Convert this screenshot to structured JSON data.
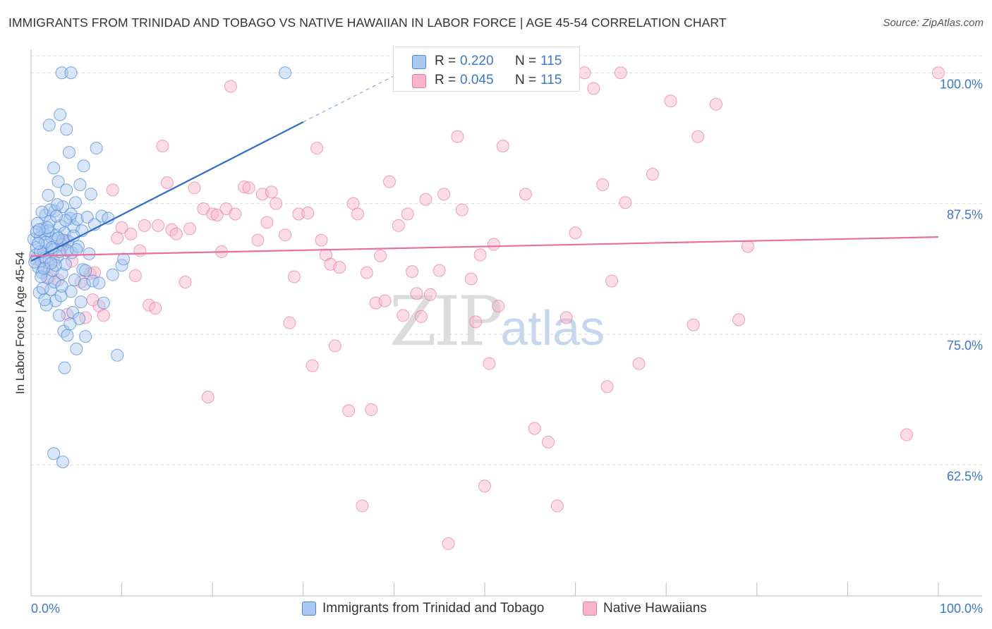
{
  "title": "IMMIGRANTS FROM TRINIDAD AND TOBAGO VS NATIVE HAWAIIAN IN LABOR FORCE | AGE 45-54 CORRELATION CHART",
  "source": "Source: ZipAtlas.com",
  "watermark": {
    "zip": "ZIP",
    "atlas": "atlas"
  },
  "legend_stats": [
    {
      "r_label": "R =",
      "r_value": "0.220",
      "n_label": "N =",
      "n_value": "115",
      "color": "#a8c8f0"
    },
    {
      "r_label": "R =",
      "r_value": "0.045",
      "n_label": "N =",
      "n_value": "115",
      "color": "#f8b4c8"
    }
  ],
  "chart_data": {
    "type": "scatter",
    "title": "IMMIGRANTS FROM TRINIDAD AND TOBAGO VS NATIVE HAWAIIAN IN LABOR FORCE | AGE 45-54 CORRELATION CHART",
    "xlabel": "",
    "ylabel": "In Labor Force | Age 45-54",
    "xlim": [
      0,
      100
    ],
    "ylim": [
      50,
      101.5
    ],
    "x_tick_labels": [
      "0.0%",
      "100.0%"
    ],
    "y_tick_labels": [
      "100.0%",
      "87.5%",
      "75.0%",
      "62.5%"
    ],
    "y_ticks": [
      100,
      87.5,
      75,
      62.5
    ],
    "grid": true,
    "series": [
      {
        "name": "Immigrants from Trinidad and Tobago",
        "color": "#a8c8f0",
        "stroke": "#4a86d4",
        "trend": {
          "x0": 0,
          "y0": 82.0,
          "x1": 30,
          "y1": 95.3,
          "dashed_to_x": 40,
          "dashed_to_y": 99.7,
          "color": "#2e6ccc"
        },
        "points": [
          [
            0.3,
            84.1
          ],
          [
            0.5,
            82.6
          ],
          [
            0.6,
            83.3
          ],
          [
            0.8,
            81.4
          ],
          [
            1.0,
            84.3
          ],
          [
            1.1,
            82.0
          ],
          [
            1.2,
            80.9
          ],
          [
            1.3,
            85.1
          ],
          [
            1.4,
            82.9
          ],
          [
            1.5,
            84.6
          ],
          [
            1.6,
            86.4
          ],
          [
            1.7,
            83.5
          ],
          [
            1.8,
            80.4
          ],
          [
            1.9,
            88.3
          ],
          [
            2.0,
            82.1
          ],
          [
            2.1,
            85.8
          ],
          [
            2.2,
            79.3
          ],
          [
            2.3,
            84.2
          ],
          [
            2.4,
            81.1
          ],
          [
            2.5,
            90.9
          ],
          [
            2.6,
            86.8
          ],
          [
            2.7,
            78.2
          ],
          [
            2.8,
            84.5
          ],
          [
            2.9,
            82.4
          ],
          [
            3.0,
            89.6
          ],
          [
            3.1,
            76.8
          ],
          [
            3.2,
            85.4
          ],
          [
            3.3,
            83.6
          ],
          [
            3.4,
            80.8
          ],
          [
            3.5,
            87.2
          ],
          [
            3.6,
            75.3
          ],
          [
            3.7,
            84.7
          ],
          [
            3.8,
            81.7
          ],
          [
            3.9,
            88.8
          ],
          [
            4.0,
            74.9
          ],
          [
            4.1,
            83.9
          ],
          [
            4.2,
            92.4
          ],
          [
            4.3,
            86.1
          ],
          [
            4.4,
            79.1
          ],
          [
            4.5,
            82.8
          ],
          [
            4.6,
            77.1
          ],
          [
            4.7,
            85.3
          ],
          [
            4.8,
            80.2
          ],
          [
            4.9,
            87.6
          ],
          [
            5.0,
            73.6
          ],
          [
            5.1,
            86.0
          ],
          [
            5.2,
            83.4
          ],
          [
            5.3,
            76.5
          ],
          [
            5.4,
            89.3
          ],
          [
            5.5,
            78.1
          ],
          [
            5.6,
            84.9
          ],
          [
            5.7,
            81.2
          ],
          [
            5.8,
            91.1
          ],
          [
            5.9,
            79.8
          ],
          [
            6.0,
            74.8
          ],
          [
            6.2,
            86.2
          ],
          [
            6.4,
            82.7
          ],
          [
            6.6,
            88.4
          ],
          [
            6.8,
            80.1
          ],
          [
            7.0,
            85.5
          ],
          [
            7.2,
            92.8
          ],
          [
            7.5,
            79.9
          ],
          [
            7.8,
            86.3
          ],
          [
            8.0,
            78.0
          ],
          [
            8.5,
            86.1
          ],
          [
            9.0,
            80.7
          ],
          [
            9.5,
            73.0
          ],
          [
            10.0,
            81.6
          ],
          [
            10.2,
            82.2
          ],
          [
            2.0,
            95.0
          ],
          [
            3.9,
            94.6
          ],
          [
            3.2,
            96.0
          ],
          [
            1.5,
            82.3
          ],
          [
            0.9,
            79.0
          ],
          [
            1.1,
            80.5
          ],
          [
            2.4,
            83.1
          ],
          [
            2.7,
            81.6
          ],
          [
            3.3,
            78.7
          ],
          [
            1.7,
            77.8
          ],
          [
            2.1,
            86.9
          ],
          [
            3.5,
            84.0
          ],
          [
            4.0,
            83.0
          ],
          [
            4.4,
            86.5
          ],
          [
            4.7,
            84.4
          ],
          [
            1.6,
            83.8
          ],
          [
            0.7,
            85.6
          ],
          [
            1.2,
            86.7
          ],
          [
            1.9,
            84.9
          ],
          [
            2.6,
            80.0
          ],
          [
            3.1,
            82.9
          ],
          [
            3.4,
            79.6
          ],
          [
            3.8,
            85.9
          ],
          [
            1.4,
            81.3
          ],
          [
            1.0,
            82.9
          ],
          [
            2.9,
            87.4
          ],
          [
            0.4,
            81.9
          ],
          [
            0.6,
            84.8
          ],
          [
            0.8,
            83.7
          ],
          [
            1.3,
            79.4
          ],
          [
            2.2,
            81.8
          ],
          [
            3.7,
            71.8
          ],
          [
            2.5,
            63.6
          ],
          [
            3.5,
            62.8
          ],
          [
            3.4,
            100.0
          ],
          [
            4.4,
            100.0
          ],
          [
            28.0,
            100.0
          ],
          [
            1.8,
            85.2
          ],
          [
            2.3,
            83.3
          ],
          [
            0.9,
            85.0
          ],
          [
            1.5,
            78.3
          ],
          [
            3.0,
            84.2
          ],
          [
            4.3,
            76.0
          ],
          [
            5.0,
            83.1
          ],
          [
            6.0,
            81.1
          ],
          [
            2.8,
            86.3
          ]
        ]
      },
      {
        "name": "Native Hawaiians",
        "color": "#f8b4c8",
        "stroke": "#e87aa0",
        "trend": {
          "x0": 0,
          "y0": 82.5,
          "x1": 100,
          "y1": 84.3,
          "color": "#e8709a"
        },
        "points": [
          [
            0.5,
            82.2
          ],
          [
            1.5,
            81.4
          ],
          [
            2.5,
            82.0
          ],
          [
            3.0,
            80.2
          ],
          [
            3.5,
            83.5
          ],
          [
            4.0,
            76.9
          ],
          [
            4.5,
            82.0
          ],
          [
            5.5,
            80.0
          ],
          [
            6.0,
            76.6
          ],
          [
            6.5,
            80.8
          ],
          [
            7.0,
            80.9
          ],
          [
            7.5,
            77.7
          ],
          [
            8.0,
            76.8
          ],
          [
            9.0,
            88.8
          ],
          [
            10.0,
            85.2
          ],
          [
            11.0,
            84.6
          ],
          [
            11.5,
            80.6
          ],
          [
            12.5,
            85.4
          ],
          [
            13.0,
            77.8
          ],
          [
            13.7,
            77.5
          ],
          [
            14.0,
            85.4
          ],
          [
            14.5,
            93.0
          ],
          [
            15.0,
            89.5
          ],
          [
            15.5,
            85.0
          ],
          [
            16.0,
            84.6
          ],
          [
            17.0,
            80.0
          ],
          [
            17.5,
            85.1
          ],
          [
            18.0,
            89.0
          ],
          [
            19.0,
            87.0
          ],
          [
            19.5,
            69.0
          ],
          [
            20.0,
            86.5
          ],
          [
            20.5,
            86.4
          ],
          [
            21.0,
            82.9
          ],
          [
            21.5,
            87.0
          ],
          [
            22.0,
            98.7
          ],
          [
            22.5,
            86.5
          ],
          [
            23.5,
            89.1
          ],
          [
            24.0,
            89.0
          ],
          [
            25.0,
            84.0
          ],
          [
            25.5,
            88.4
          ],
          [
            26.0,
            85.7
          ],
          [
            26.5,
            88.6
          ],
          [
            27.0,
            87.5
          ],
          [
            28.0,
            84.5
          ],
          [
            28.5,
            76.1
          ],
          [
            29.0,
            80.5
          ],
          [
            29.5,
            86.5
          ],
          [
            30.5,
            86.6
          ],
          [
            31.0,
            72.0
          ],
          [
            31.5,
            92.8
          ],
          [
            32.0,
            84.0
          ],
          [
            32.5,
            82.6
          ],
          [
            33.0,
            81.7
          ],
          [
            33.5,
            73.9
          ],
          [
            34.0,
            81.4
          ],
          [
            35.0,
            67.7
          ],
          [
            35.5,
            87.5
          ],
          [
            36.0,
            86.5
          ],
          [
            36.5,
            58.6
          ],
          [
            37.0,
            80.9
          ],
          [
            37.5,
            67.8
          ],
          [
            38.0,
            78.0
          ],
          [
            38.5,
            82.5
          ],
          [
            39.0,
            78.2
          ],
          [
            39.5,
            89.6
          ],
          [
            40.5,
            85.4
          ],
          [
            41.0,
            76.8
          ],
          [
            41.5,
            86.5
          ],
          [
            42.0,
            81.0
          ],
          [
            42.5,
            78.9
          ],
          [
            43.0,
            76.7
          ],
          [
            43.5,
            87.9
          ],
          [
            44.0,
            78.8
          ],
          [
            45.0,
            81.1
          ],
          [
            45.5,
            88.4
          ],
          [
            46.0,
            55.0
          ],
          [
            47.0,
            93.9
          ],
          [
            47.5,
            86.9
          ],
          [
            48.5,
            80.3
          ],
          [
            49.0,
            76.2
          ],
          [
            49.5,
            82.6
          ],
          [
            50.0,
            60.5
          ],
          [
            50.5,
            72.2
          ],
          [
            51.0,
            83.6
          ],
          [
            51.5,
            77.7
          ],
          [
            52.0,
            93.0
          ],
          [
            54.5,
            88.4
          ],
          [
            55.5,
            66.0
          ],
          [
            57.0,
            64.7
          ],
          [
            58.0,
            58.6
          ],
          [
            57.5,
            100.3
          ],
          [
            59.0,
            76.6
          ],
          [
            60.0,
            84.7
          ],
          [
            61.0,
            100.0
          ],
          [
            62.0,
            98.5
          ],
          [
            63.0,
            89.3
          ],
          [
            63.5,
            70.0
          ],
          [
            64.0,
            80.1
          ],
          [
            65.0,
            100.0
          ],
          [
            65.5,
            87.6
          ],
          [
            67.0,
            72.2
          ],
          [
            68.5,
            90.3
          ],
          [
            70.5,
            97.3
          ],
          [
            73.0,
            75.9
          ],
          [
            73.5,
            93.9
          ],
          [
            75.5,
            97.0
          ],
          [
            78.0,
            76.4
          ],
          [
            79.0,
            83.4
          ],
          [
            96.5,
            65.4
          ],
          [
            100.0,
            100.0
          ],
          [
            2.0,
            80.5
          ],
          [
            3.8,
            84.0
          ],
          [
            6.8,
            78.3
          ],
          [
            9.5,
            84.2
          ],
          [
            12.0,
            83.0
          ]
        ]
      }
    ]
  }
}
